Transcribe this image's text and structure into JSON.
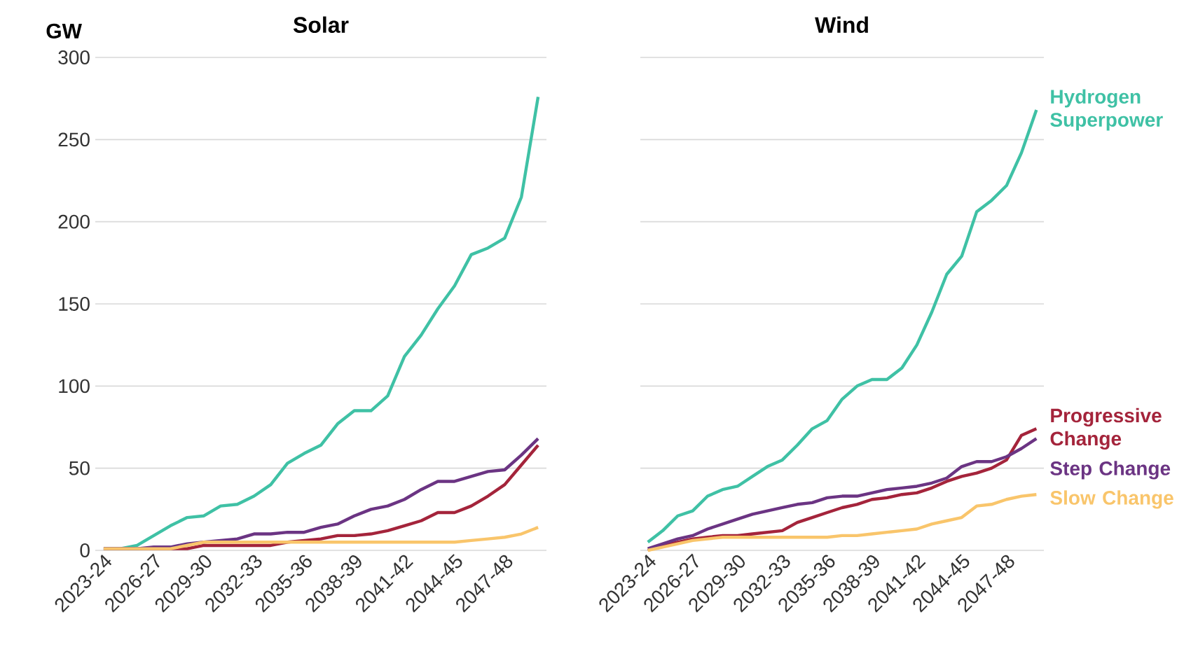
{
  "chart_data": [
    {
      "type": "line",
      "title": "Solar",
      "ylabel": "GW",
      "grid": "y",
      "ylim": [
        0,
        300
      ],
      "yticks": [
        0,
        50,
        100,
        150,
        200,
        250,
        300
      ],
      "categories": [
        "2023-24",
        null,
        null,
        "2026-27",
        null,
        null,
        "2029-30",
        null,
        null,
        "2032-33",
        null,
        null,
        "2035-36",
        null,
        null,
        "2038-39",
        null,
        null,
        "2041-42",
        null,
        null,
        "2044-45",
        null,
        null,
        "2047-48",
        null,
        null
      ],
      "series": [
        {
          "color": "#3fc1a5",
          "values": [
            1,
            1,
            3,
            9,
            15,
            20,
            21,
            27,
            28,
            33,
            40,
            53,
            59,
            64,
            77,
            85,
            85,
            94,
            118,
            131,
            147,
            161,
            180,
            184,
            190,
            215,
            276
          ]
        },
        {
          "color": "#a4243b",
          "values": [
            1,
            1,
            1,
            1,
            1,
            1,
            3,
            3,
            3,
            3,
            3,
            5,
            6,
            7,
            9,
            9,
            10,
            12,
            15,
            18,
            23,
            23,
            27,
            33,
            40,
            52,
            64
          ]
        },
        {
          "color": "#6b3483",
          "values": [
            1,
            1,
            1,
            2,
            2,
            4,
            5,
            6,
            7,
            10,
            10,
            11,
            11,
            14,
            16,
            21,
            25,
            27,
            31,
            37,
            42,
            42,
            45,
            48,
            49,
            58,
            68
          ]
        },
        {
          "color": "#f9c56b",
          "values": [
            1,
            1,
            1,
            1,
            1,
            3,
            5,
            5,
            5,
            5,
            5,
            5,
            5,
            5,
            5,
            5,
            5,
            5,
            5,
            5,
            5,
            5,
            6,
            7,
            8,
            10,
            14
          ]
        }
      ]
    },
    {
      "type": "line",
      "title": "Wind",
      "grid": "y",
      "tick_labels": "x",
      "ylim": [
        0,
        300
      ],
      "yticks": [
        0,
        50,
        100,
        150,
        200,
        250,
        300
      ],
      "categories": [
        "2023-24",
        null,
        null,
        "2026-27",
        null,
        null,
        "2029-30",
        null,
        null,
        "2032-33",
        null,
        null,
        "2035-36",
        null,
        null,
        "2038-39",
        null,
        null,
        "2041-42",
        null,
        null,
        "2044-45",
        null,
        null,
        "2047-48",
        null,
        null
      ],
      "series": [
        {
          "name": "Hydrogen Superpower",
          "color": "#3fc1a5",
          "values": [
            5,
            12,
            21,
            24,
            33,
            37,
            39,
            45,
            51,
            55,
            64,
            74,
            79,
            92,
            100,
            104,
            104,
            111,
            125,
            145,
            168,
            179,
            206,
            213,
            222,
            242,
            268
          ]
        },
        {
          "name": "Progressive Change",
          "color": "#a4243b",
          "values": [
            0,
            3,
            5,
            7,
            8,
            9,
            9,
            10,
            11,
            12,
            17,
            20,
            23,
            26,
            28,
            31,
            32,
            34,
            35,
            38,
            42,
            45,
            47,
            50,
            55,
            70,
            74
          ]
        },
        {
          "name": "Step Change",
          "color": "#6b3483",
          "values": [
            1,
            4,
            7,
            9,
            13,
            16,
            19,
            22,
            24,
            26,
            28,
            29,
            32,
            33,
            33,
            35,
            37,
            38,
            39,
            41,
            44,
            51,
            54,
            54,
            57,
            62,
            68
          ]
        },
        {
          "name": "Slow Change",
          "color": "#f9c56b",
          "values": [
            0,
            2,
            4,
            6,
            7,
            8,
            8,
            8,
            8,
            8,
            8,
            8,
            8,
            9,
            9,
            10,
            11,
            12,
            13,
            16,
            18,
            20,
            27,
            28,
            31,
            33,
            34
          ]
        }
      ]
    }
  ]
}
